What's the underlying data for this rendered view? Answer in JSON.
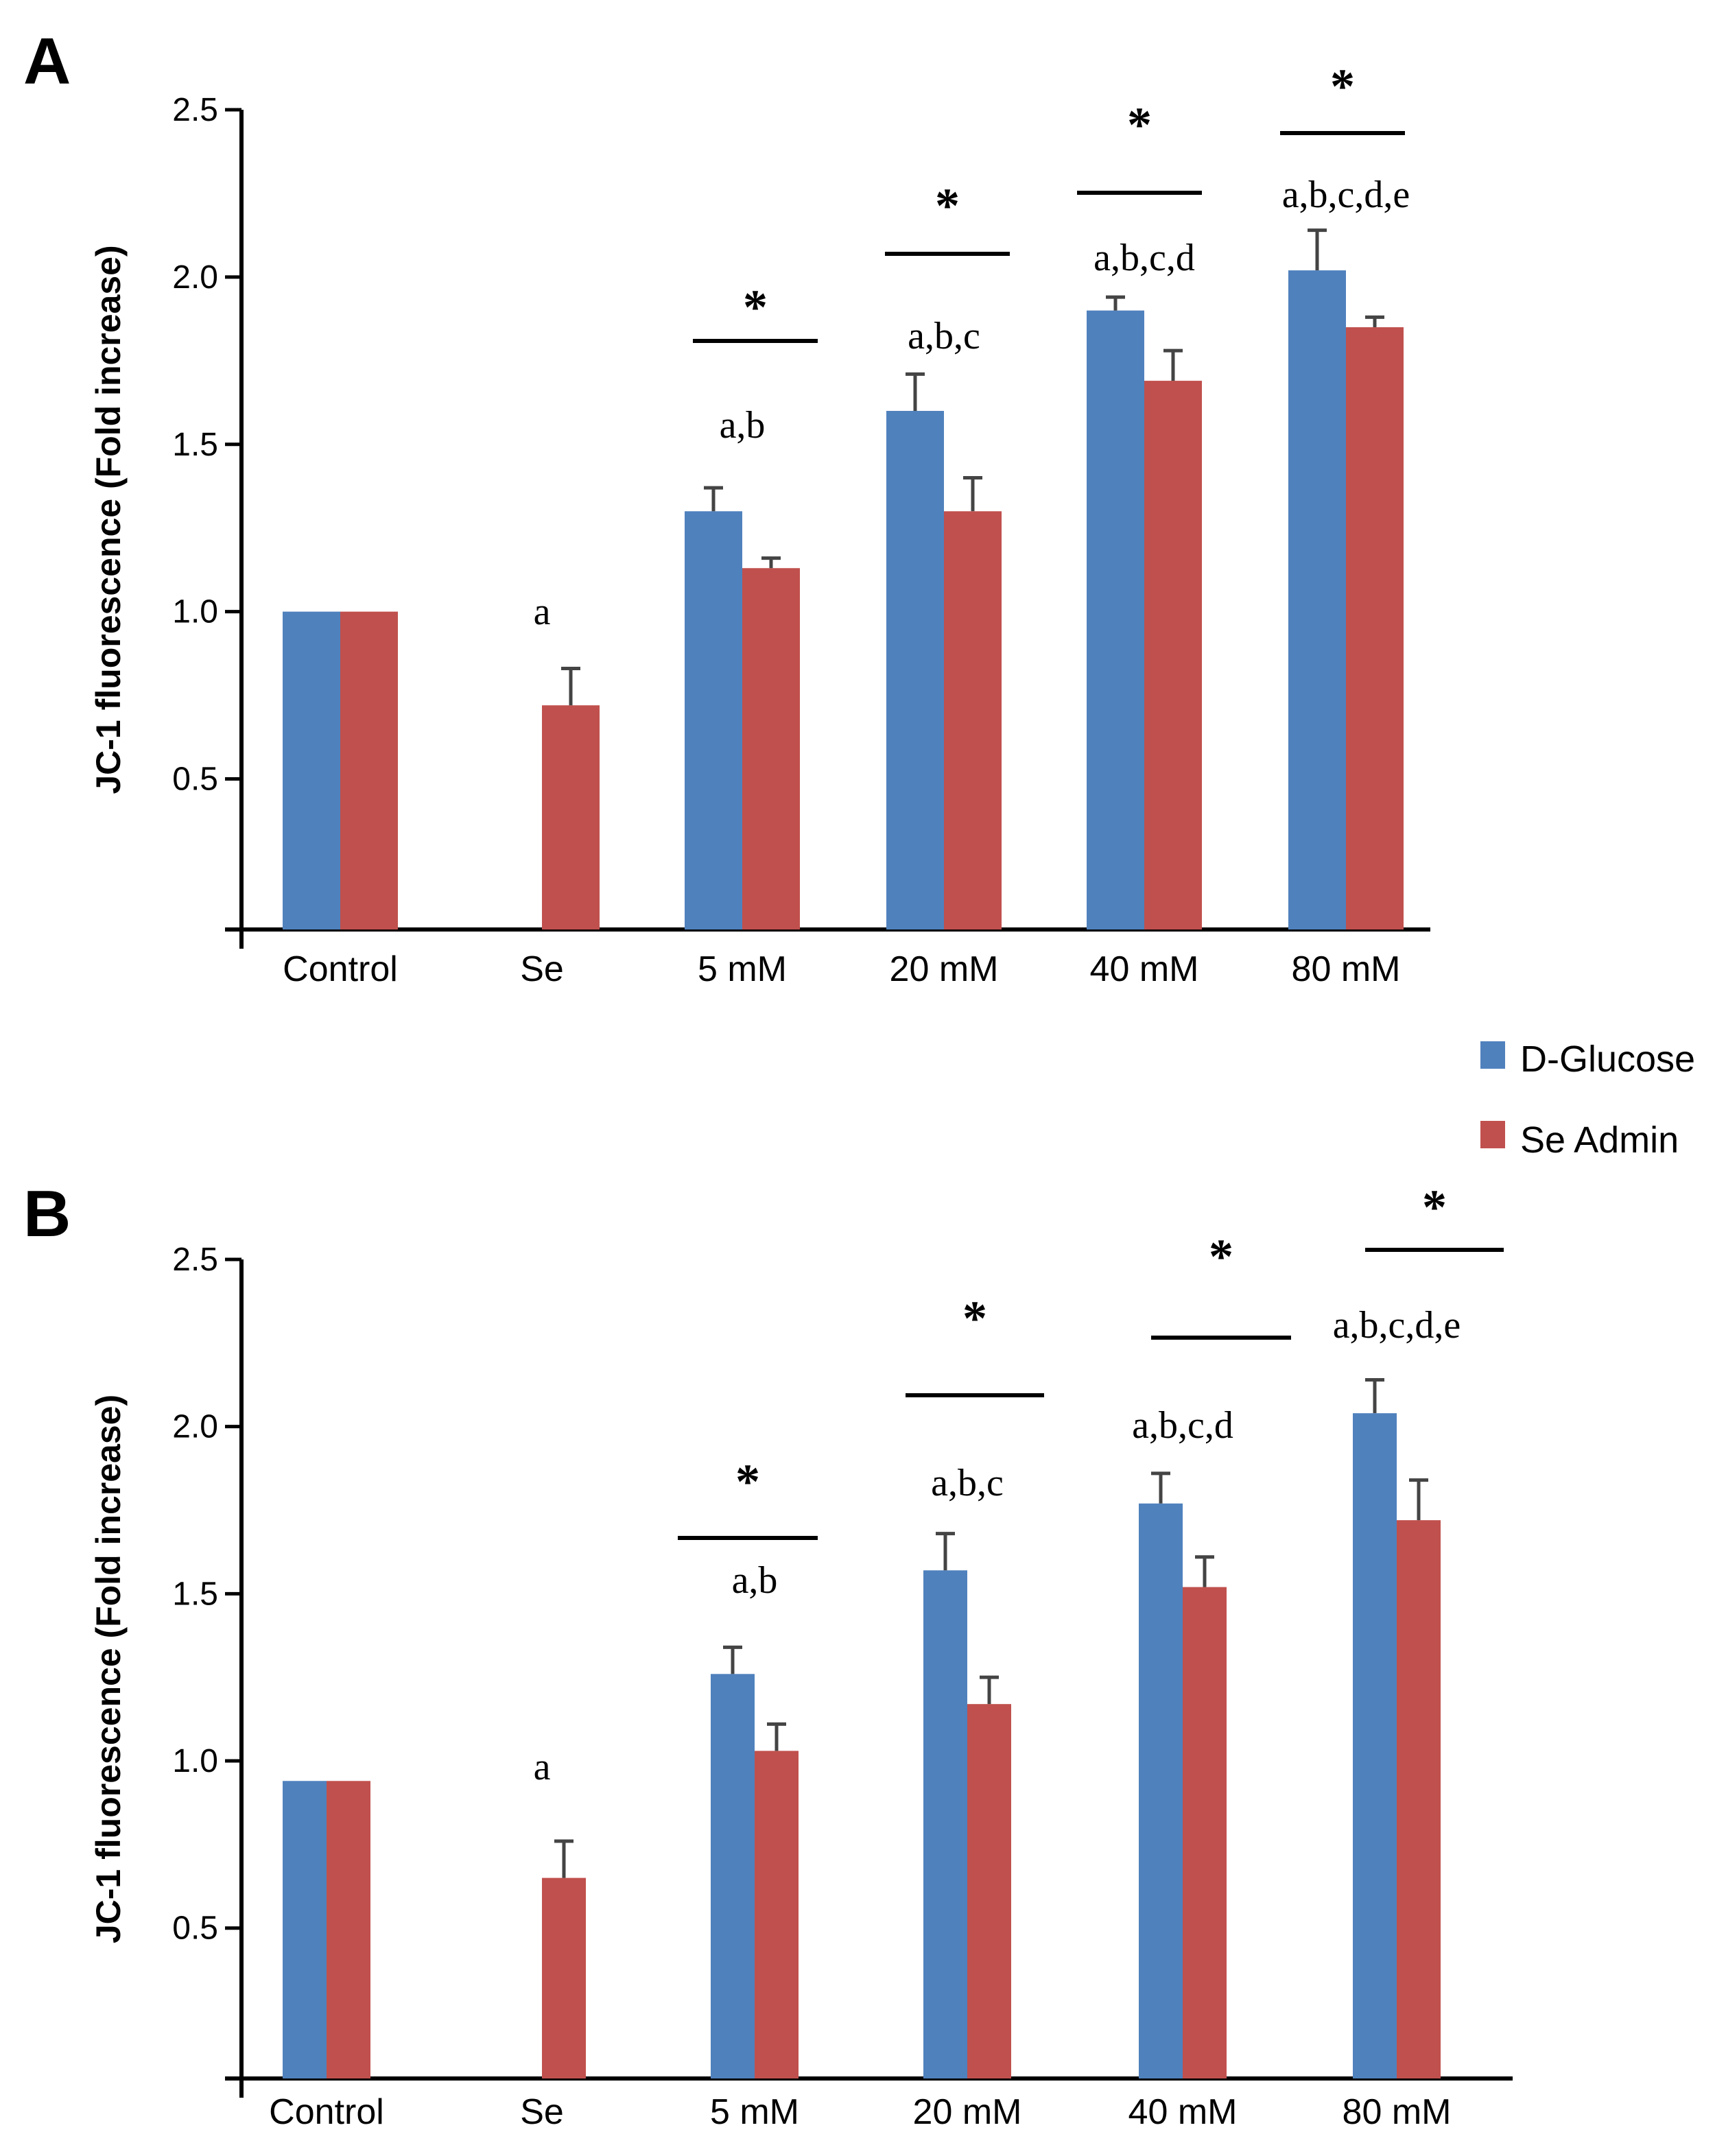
{
  "legend": {
    "position": "right, between panels",
    "entries": [
      {
        "label": "D-Glucose",
        "color": "#4f81bd"
      },
      {
        "label": "Se Admin",
        "color": "#c0504d"
      }
    ]
  },
  "chart_data": [
    {
      "panel": "A",
      "type": "bar",
      "ylabel": "JC-1 fluorescence (Fold increase)",
      "xlabel": "",
      "ylim": [
        0.05,
        2.5
      ],
      "yticks": [
        "0.5",
        "1.0",
        "1.5",
        "2.0",
        "2.5"
      ],
      "categories": [
        "Control",
        "Se",
        "5 mM",
        "20 mM",
        "40 mM",
        "80 mM"
      ],
      "series": [
        {
          "name": "D-Glucose",
          "color": "#4f81bd",
          "values": [
            1.0,
            null,
            1.3,
            1.6,
            1.9,
            2.02
          ],
          "errors": [
            0,
            null,
            0.07,
            0.11,
            0.04,
            0.12
          ]
        },
        {
          "name": "Se Admin",
          "color": "#c0504d",
          "values": [
            1.0,
            0.72,
            1.13,
            1.3,
            1.69,
            1.85
          ],
          "errors": [
            0,
            0.11,
            0.03,
            0.1,
            0.09,
            0.03
          ]
        }
      ],
      "annotations": [
        {
          "category": "Se",
          "text": "a"
        },
        {
          "category": "5 mM",
          "text": "a,b"
        },
        {
          "category": "20 mM",
          "text": "a,b,c"
        },
        {
          "category": "40 mM",
          "text": "a,b,c,d"
        },
        {
          "category": "80 mM",
          "text": "a,b,c,d,e"
        }
      ],
      "significance": [
        {
          "category": "5 mM",
          "text": "*"
        },
        {
          "category": "20 mM",
          "text": "*"
        },
        {
          "category": "40 mM",
          "text": "*"
        },
        {
          "category": "80 mM",
          "text": "*"
        }
      ]
    },
    {
      "panel": "B",
      "type": "bar",
      "ylabel": "JC-1 fluorescence (Fold increase)",
      "xlabel": "",
      "ylim": [
        0.05,
        2.5
      ],
      "yticks": [
        "0.5",
        "1.0",
        "1.5",
        "2.0",
        "2.5"
      ],
      "categories": [
        "Control",
        "Se",
        "5 mM",
        "20 mM",
        "40 mM",
        "80 mM"
      ],
      "series": [
        {
          "name": "D-Glucose",
          "color": "#4f81bd",
          "values": [
            0.94,
            null,
            1.26,
            1.57,
            1.77,
            2.04
          ],
          "errors": [
            0,
            null,
            0.08,
            0.11,
            0.09,
            0.1
          ]
        },
        {
          "name": "Se Admin",
          "color": "#c0504d",
          "values": [
            0.94,
            0.65,
            1.03,
            1.17,
            1.52,
            1.72
          ],
          "errors": [
            0,
            0.11,
            0.08,
            0.08,
            0.09,
            0.12
          ]
        }
      ],
      "annotations": [
        {
          "category": "Se",
          "text": "a"
        },
        {
          "category": "5 mM",
          "text": "a,b"
        },
        {
          "category": "20 mM",
          "text": "a,b,c"
        },
        {
          "category": "40 mM",
          "text": "a,b,c,d"
        },
        {
          "category": "80 mM",
          "text": "a,b,c,d,e"
        }
      ],
      "significance": [
        {
          "category": "5 mM",
          "text": "*"
        },
        {
          "category": "20 mM",
          "text": "*"
        },
        {
          "category": "40 mM",
          "text": "*"
        },
        {
          "category": "80 mM",
          "text": "*"
        }
      ]
    }
  ]
}
